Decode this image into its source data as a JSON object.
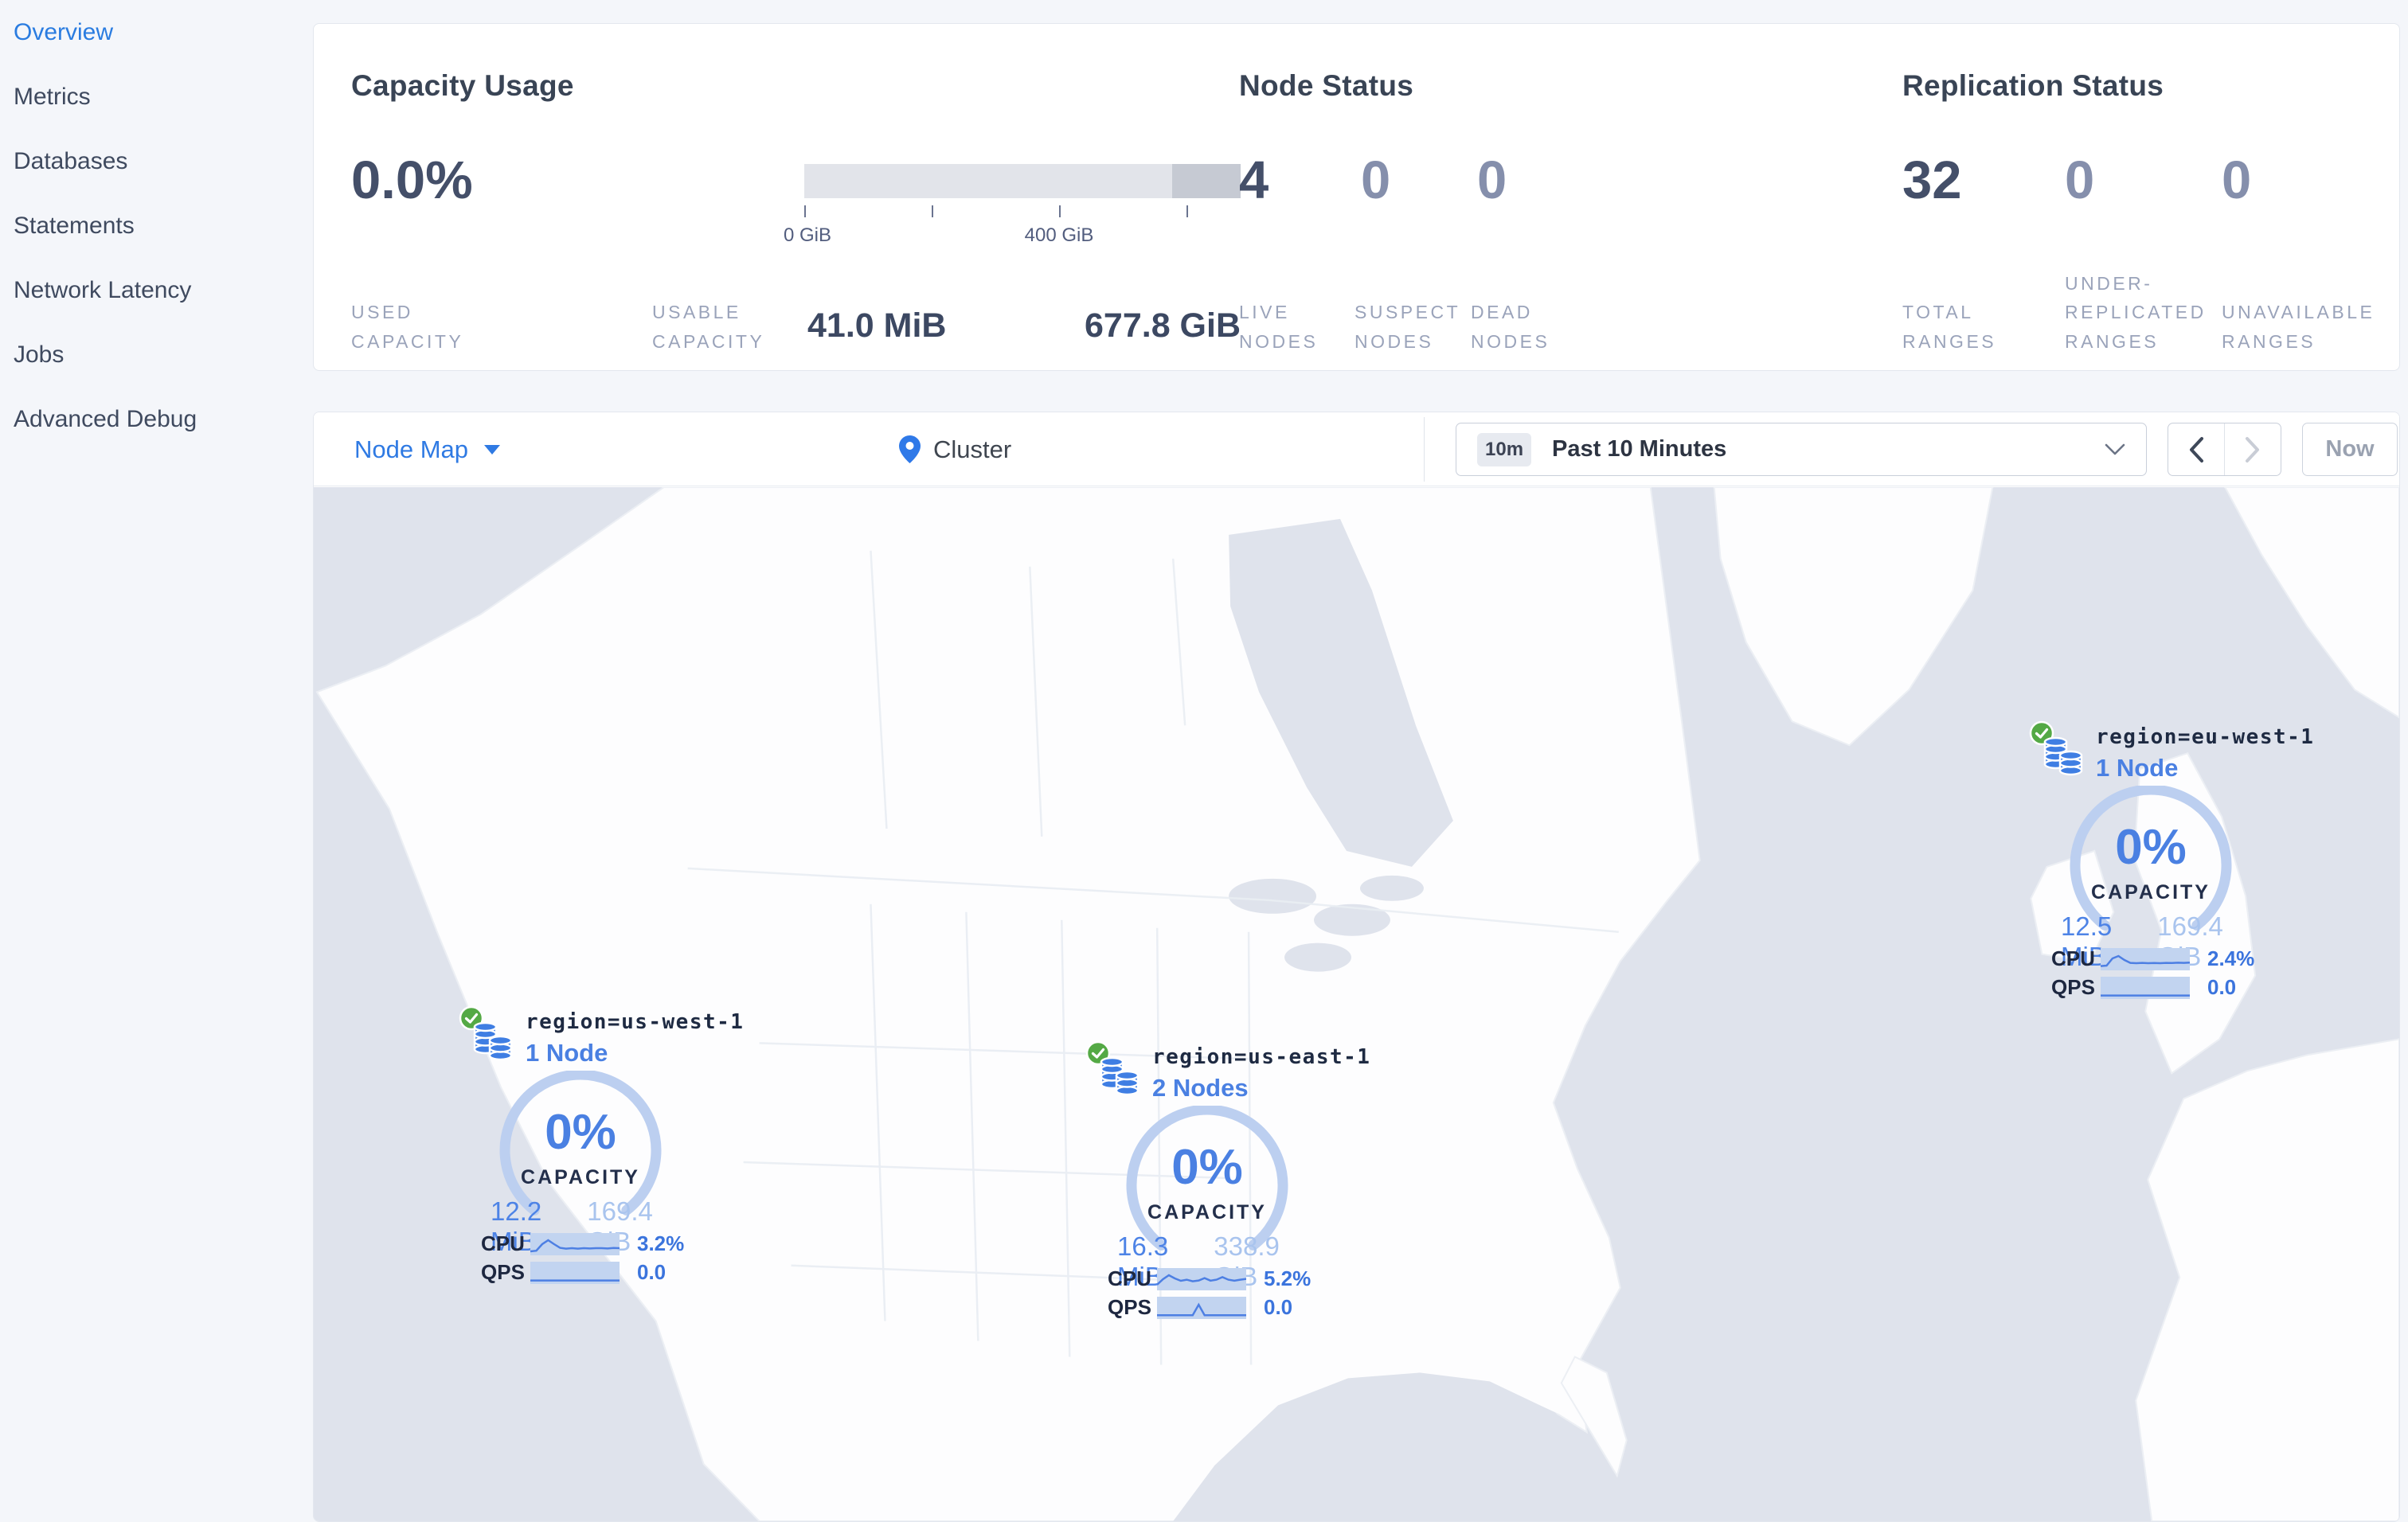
{
  "sidebar": {
    "items": [
      {
        "label": "Overview",
        "active": true
      },
      {
        "label": "Metrics",
        "active": false
      },
      {
        "label": "Databases",
        "active": false
      },
      {
        "label": "Statements",
        "active": false
      },
      {
        "label": "Network Latency",
        "active": false
      },
      {
        "label": "Jobs",
        "active": false
      },
      {
        "label": "Advanced Debug",
        "active": false
      }
    ]
  },
  "panels": {
    "capacity": {
      "title": "Capacity Usage",
      "percent": "0.0%",
      "tick_labels": [
        "0 GiB",
        "400 GiB"
      ],
      "used_label": "USED CAPACITY",
      "used_value": "41.0 MiB",
      "usable_label": "USABLE CAPACITY",
      "usable_value": "677.8 GiB"
    },
    "node_status": {
      "title": "Node Status",
      "metrics": [
        {
          "value": "4",
          "label": "LIVE NODES"
        },
        {
          "value": "0",
          "label": "SUSPECT NODES"
        },
        {
          "value": "0",
          "label": "DEAD NODES"
        }
      ]
    },
    "replication": {
      "title": "Replication Status",
      "metrics": [
        {
          "value": "32",
          "label": "TOTAL RANGES"
        },
        {
          "value": "0",
          "label": "UNDER-REPLICATED RANGES"
        },
        {
          "value": "0",
          "label": "UNAVAILABLE RANGES"
        }
      ]
    }
  },
  "toolbar": {
    "view_label": "Node Map",
    "breadcrumb": "Cluster",
    "time": {
      "badge": "10m",
      "label": "Past 10 Minutes"
    },
    "now_label": "Now"
  },
  "map": {
    "regions": [
      {
        "name": "region=us-west-1",
        "nodes": "1 Node",
        "capacity_percent": "0%",
        "capacity_label": "CAPACITY",
        "used": "12.2 MiB",
        "capacity_total": "169.4 GiB",
        "cpu_label": "CPU",
        "cpu": "3.2%",
        "qps_label": "QPS",
        "qps": "0.0",
        "cpu_spark": [
          0.1,
          0.14,
          0.55,
          0.8,
          0.55,
          0.32,
          0.27,
          0.3,
          0.27,
          0.3,
          0.28,
          0.3,
          0.3,
          0.28,
          0.31,
          0.3
        ],
        "qps_spark": [
          0.07,
          0.07,
          0.07,
          0.07,
          0.07,
          0.07,
          0.07,
          0.07,
          0.07,
          0.07,
          0.07,
          0.07,
          0.07,
          0.07,
          0.07,
          0.07
        ]
      },
      {
        "name": "region=us-east-1",
        "nodes": "2 Nodes",
        "capacity_percent": "0%",
        "capacity_label": "CAPACITY",
        "used": "16.3 MiB",
        "capacity_total": "338.9 GiB",
        "cpu_label": "CPU",
        "cpu": "5.2%",
        "qps_label": "QPS",
        "qps": "0.0",
        "cpu_spark": [
          0.2,
          0.55,
          0.8,
          0.6,
          0.45,
          0.52,
          0.42,
          0.47,
          0.62,
          0.46,
          0.52,
          0.68,
          0.52,
          0.46,
          0.52,
          0.57
        ],
        "qps_spark": [
          0.09,
          0.09,
          0.09,
          0.09,
          0.09,
          0.09,
          0.09,
          0.75,
          0.09,
          0.09,
          0.09,
          0.09,
          0.09,
          0.09,
          0.09,
          0.09
        ]
      },
      {
        "name": "region=eu-west-1",
        "nodes": "1 Node",
        "capacity_percent": "0%",
        "capacity_label": "CAPACITY",
        "used": "12.5 MiB",
        "capacity_total": "169.4 GiB",
        "cpu_label": "CPU",
        "cpu": "2.4%",
        "qps_label": "QPS",
        "qps": "0.0",
        "cpu_spark": [
          0.12,
          0.15,
          0.6,
          0.75,
          0.5,
          0.32,
          0.3,
          0.32,
          0.3,
          0.31,
          0.3,
          0.32,
          0.31,
          0.33,
          0.32,
          0.34
        ],
        "qps_spark": [
          0.07,
          0.07,
          0.07,
          0.07,
          0.07,
          0.07,
          0.07,
          0.07,
          0.07,
          0.07,
          0.07,
          0.07,
          0.07,
          0.07,
          0.07,
          0.07
        ]
      }
    ]
  },
  "colors": {
    "accent_blue": "#2f7ae3",
    "link_blue": "#4a80e2",
    "ok_green": "#54a945",
    "arc_blue": "#bccff0",
    "spark_fill": "#c2d4f0",
    "spark_line": "#4d7fe3",
    "ocean": "#dfe3ec",
    "land": "#fdfdfe",
    "bar_light": "#e2e4ea",
    "bar_dark": "#c6cad3"
  }
}
